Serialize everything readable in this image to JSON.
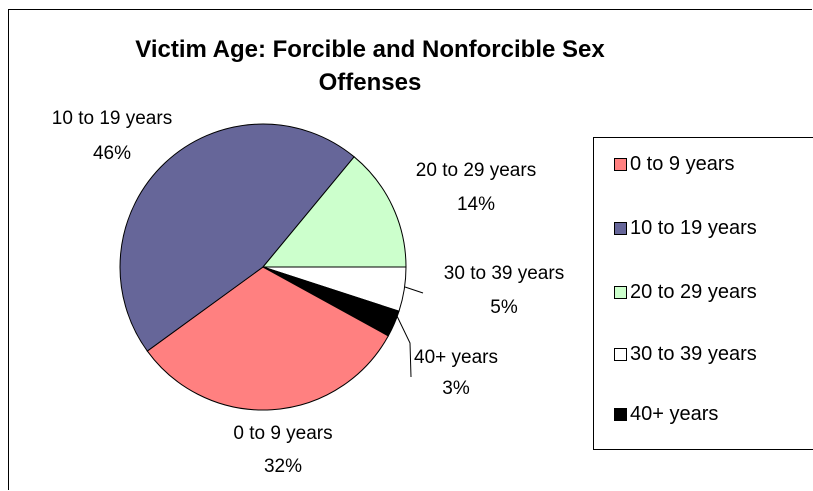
{
  "chart_data": {
    "type": "pie",
    "title": "Victim Age:  Forcible and Nonforcible Sex Offenses",
    "categories": [
      "0 to 9 years",
      "10 to 19 years",
      "20 to 29 years",
      "30 to 39 years",
      "40+ years"
    ],
    "values": [
      32,
      46,
      14,
      5,
      3
    ],
    "data_labels": [
      {
        "category": "0 to 9 years",
        "percent": "32%"
      },
      {
        "category": "10 to 19 years",
        "percent": "46%"
      },
      {
        "category": "20 to 29 years",
        "percent": "14%"
      },
      {
        "category": "30 to 39 years",
        "percent": "5%"
      },
      {
        "category": "40+ years",
        "percent": "3%"
      }
    ],
    "colors": [
      "#ff8080",
      "#666699",
      "#ccffcc",
      "#ffffff",
      "#000000"
    ],
    "legend": {
      "placement": "right",
      "entries": [
        "0 to 9 years",
        "10 to 19 years",
        "20 to 29 years",
        "30 to 39 years",
        "40+ years"
      ]
    }
  }
}
